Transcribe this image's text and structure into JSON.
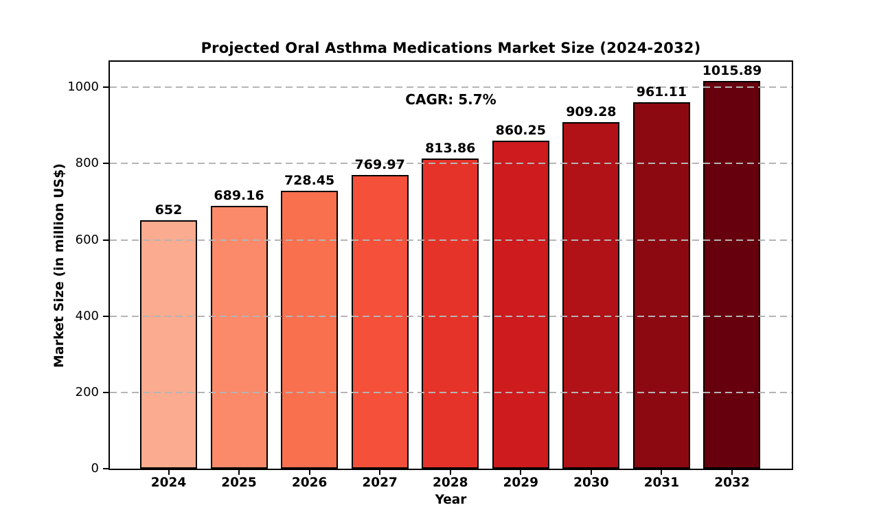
{
  "chart_data": {
    "type": "bar",
    "title": "Projected Oral Asthma Medications Market Size (2024-2032)",
    "annotation": "CAGR: 5.7%",
    "xlabel": "Year",
    "ylabel": "Market Size (in million US$)",
    "categories": [
      "2024",
      "2025",
      "2026",
      "2027",
      "2028",
      "2029",
      "2030",
      "2031",
      "2032"
    ],
    "values": [
      652,
      689.16,
      728.45,
      769.97,
      813.86,
      860.25,
      909.28,
      961.11,
      1015.89
    ],
    "value_labels": [
      "652",
      "689.16",
      "728.45",
      "769.97",
      "813.86",
      "860.25",
      "909.28",
      "961.11",
      "1015.89"
    ],
    "bar_colors": [
      "#FBAB8F",
      "#FB8A6A",
      "#F9704F",
      "#F4503A",
      "#E63329",
      "#CD1B1E",
      "#B01217",
      "#8C0912",
      "#67000D"
    ],
    "bar_edge_color": "#000000",
    "ylim": [
      0,
      1067
    ],
    "yticks": [
      0,
      200,
      400,
      600,
      800,
      1000
    ],
    "grid": "horizontal-dashed",
    "grid_color": "#b4b4b4",
    "legend": "none"
  }
}
